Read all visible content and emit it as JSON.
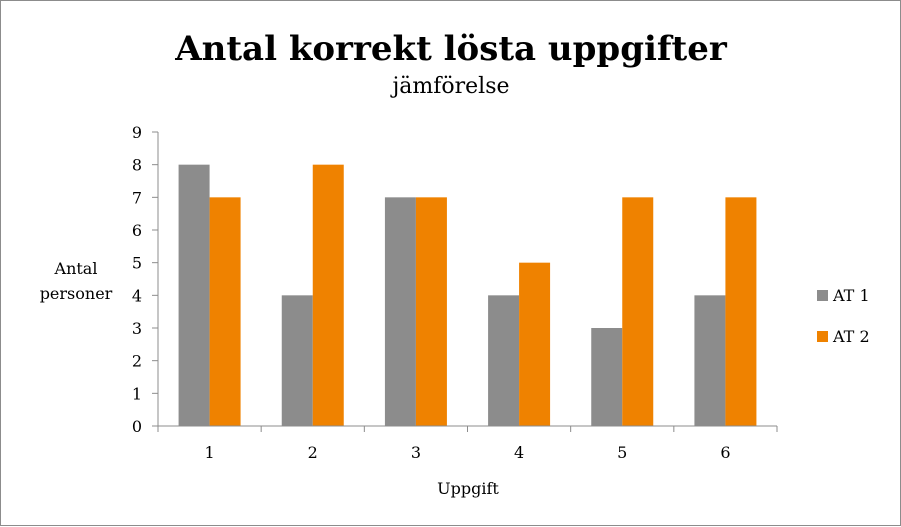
{
  "chart_data": {
    "type": "bar",
    "title": "Antal korrekt lösta uppgifter",
    "subtitle": "jämförelse",
    "xlabel": "Uppgift",
    "ylabel_lines": [
      "Antal",
      "personer"
    ],
    "categories": [
      "1",
      "2",
      "3",
      "4",
      "5",
      "6"
    ],
    "ylim": [
      0,
      9
    ],
    "yticks": [
      "0",
      "1",
      "2",
      "3",
      "4",
      "5",
      "6",
      "7",
      "8",
      "9"
    ],
    "grid": false,
    "legend_position": "right",
    "series": [
      {
        "name": "AT 1",
        "color": "#8c8c8c",
        "values": [
          8,
          4,
          7,
          4,
          3,
          4
        ]
      },
      {
        "name": "AT 2",
        "color": "#ef8200",
        "values": [
          7,
          8,
          7,
          5,
          7,
          7
        ]
      }
    ]
  }
}
